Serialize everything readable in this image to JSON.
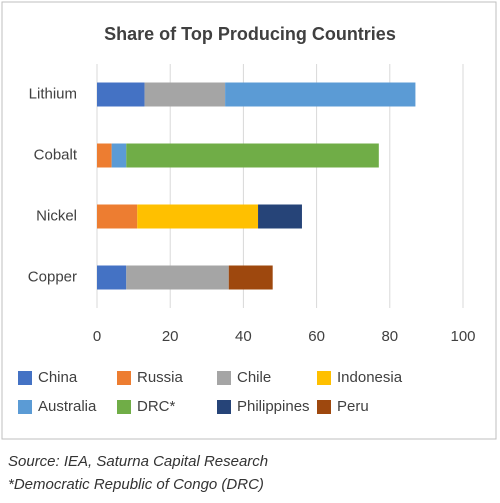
{
  "chart_data": {
    "type": "stacked-bar-horizontal",
    "title": "Share of Top Producing Countries",
    "categories": [
      "Lithium",
      "Cobalt",
      "Nickel",
      "Copper"
    ],
    "series": [
      {
        "name": "China",
        "color": "#4472c4",
        "values": [
          13,
          null,
          null,
          8
        ]
      },
      {
        "name": "Russia",
        "color": "#ed7d31",
        "values": [
          null,
          4,
          11,
          null
        ]
      },
      {
        "name": "Chile",
        "color": "#a5a5a5",
        "values": [
          22,
          null,
          null,
          28
        ]
      },
      {
        "name": "Indonesia",
        "color": "#ffc000",
        "values": [
          null,
          null,
          33,
          null
        ]
      },
      {
        "name": "Australia",
        "color": "#5b9bd5",
        "values": [
          52,
          4,
          null,
          null
        ]
      },
      {
        "name": "DRC*",
        "color": "#70ad47",
        "values": [
          null,
          69,
          null,
          null
        ]
      },
      {
        "name": "Philippines",
        "color": "#264478",
        "values": [
          null,
          null,
          12,
          null
        ]
      },
      {
        "name": "Peru",
        "color": "#9e480e",
        "values": [
          null,
          null,
          null,
          12
        ]
      }
    ],
    "xlim": [
      0,
      100
    ],
    "xticks": [
      0,
      20,
      40,
      60,
      80,
      100
    ],
    "grid": true,
    "source": "Source: IEA, Saturna Capital Research",
    "footnote": "*Democratic Republic of Congo (DRC)"
  }
}
